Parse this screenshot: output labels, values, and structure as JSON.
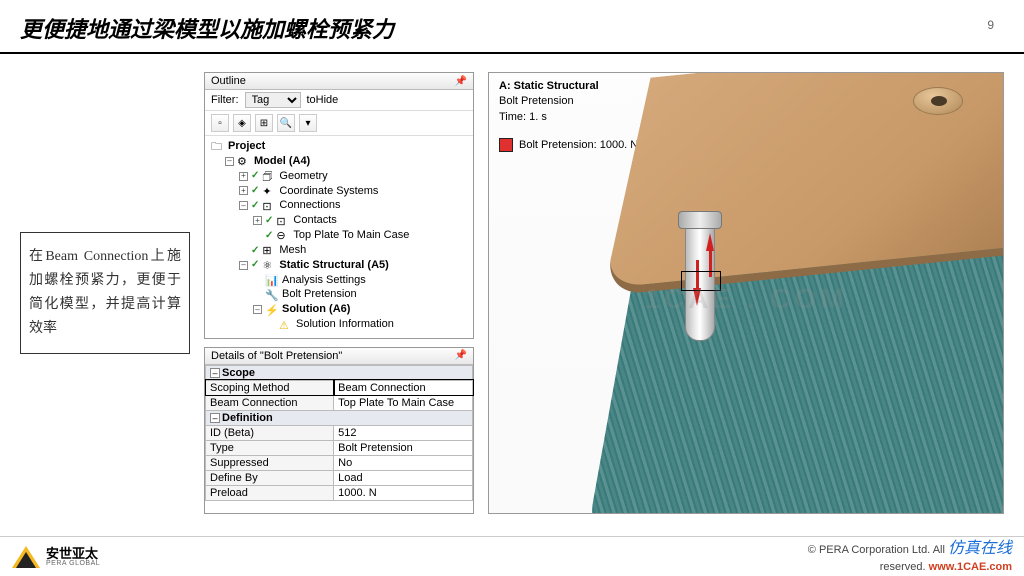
{
  "header": {
    "title": "更便捷地通过梁模型以施加螺栓预紧力",
    "page_number": "9"
  },
  "note": "在Beam Connection上施加螺栓预紧力，更便于简化模型，并提高计算效率",
  "outline": {
    "panel_title": "Outline",
    "filter_label": "Filter:",
    "filter_value": "Tag",
    "filter_extra": "toHide",
    "tree": {
      "project": "Project",
      "model": "Model (A4)",
      "geometry": "Geometry",
      "coord": "Coordinate Systems",
      "connections": "Connections",
      "contacts": "Contacts",
      "top_plate": "Top Plate To Main Case",
      "mesh": "Mesh",
      "static": "Static Structural (A5)",
      "analysis": "Analysis Settings",
      "bolt_pre": "Bolt Pretension",
      "solution": "Solution (A6)",
      "sol_info": "Solution Information"
    }
  },
  "details": {
    "panel_title": "Details of \"Bolt Pretension\"",
    "groups": {
      "scope": "Scope",
      "definition": "Definition"
    },
    "rows": {
      "scoping_method_k": "Scoping Method",
      "scoping_method_v": "Beam Connection",
      "beam_conn_k": "Beam Connection",
      "beam_conn_v": "Top Plate To Main Case",
      "id_k": "ID (Beta)",
      "id_v": "512",
      "type_k": "Type",
      "type_v": "Bolt Pretension",
      "suppressed_k": "Suppressed",
      "suppressed_v": "No",
      "define_by_k": "Define By",
      "define_by_v": "Load",
      "preload_k": "Preload",
      "preload_v": "1000. N"
    }
  },
  "viewport": {
    "title": "A: Static Structural",
    "sub1": "Bolt Pretension",
    "sub2": "Time: 1. s",
    "legend_label": "Bolt Pretension: 1000. N",
    "legend_color": "#e03030",
    "watermark": "1CAE . COM"
  },
  "footer": {
    "logo_cn": "安世亚太",
    "logo_en": "PERA GLOBAL",
    "copyright_l1": "©   PERA Corporation Ltd. All",
    "copyright_l2": "reserved.",
    "sim_online": "仿真在线",
    "cae_link": "www.1CAE.com"
  }
}
